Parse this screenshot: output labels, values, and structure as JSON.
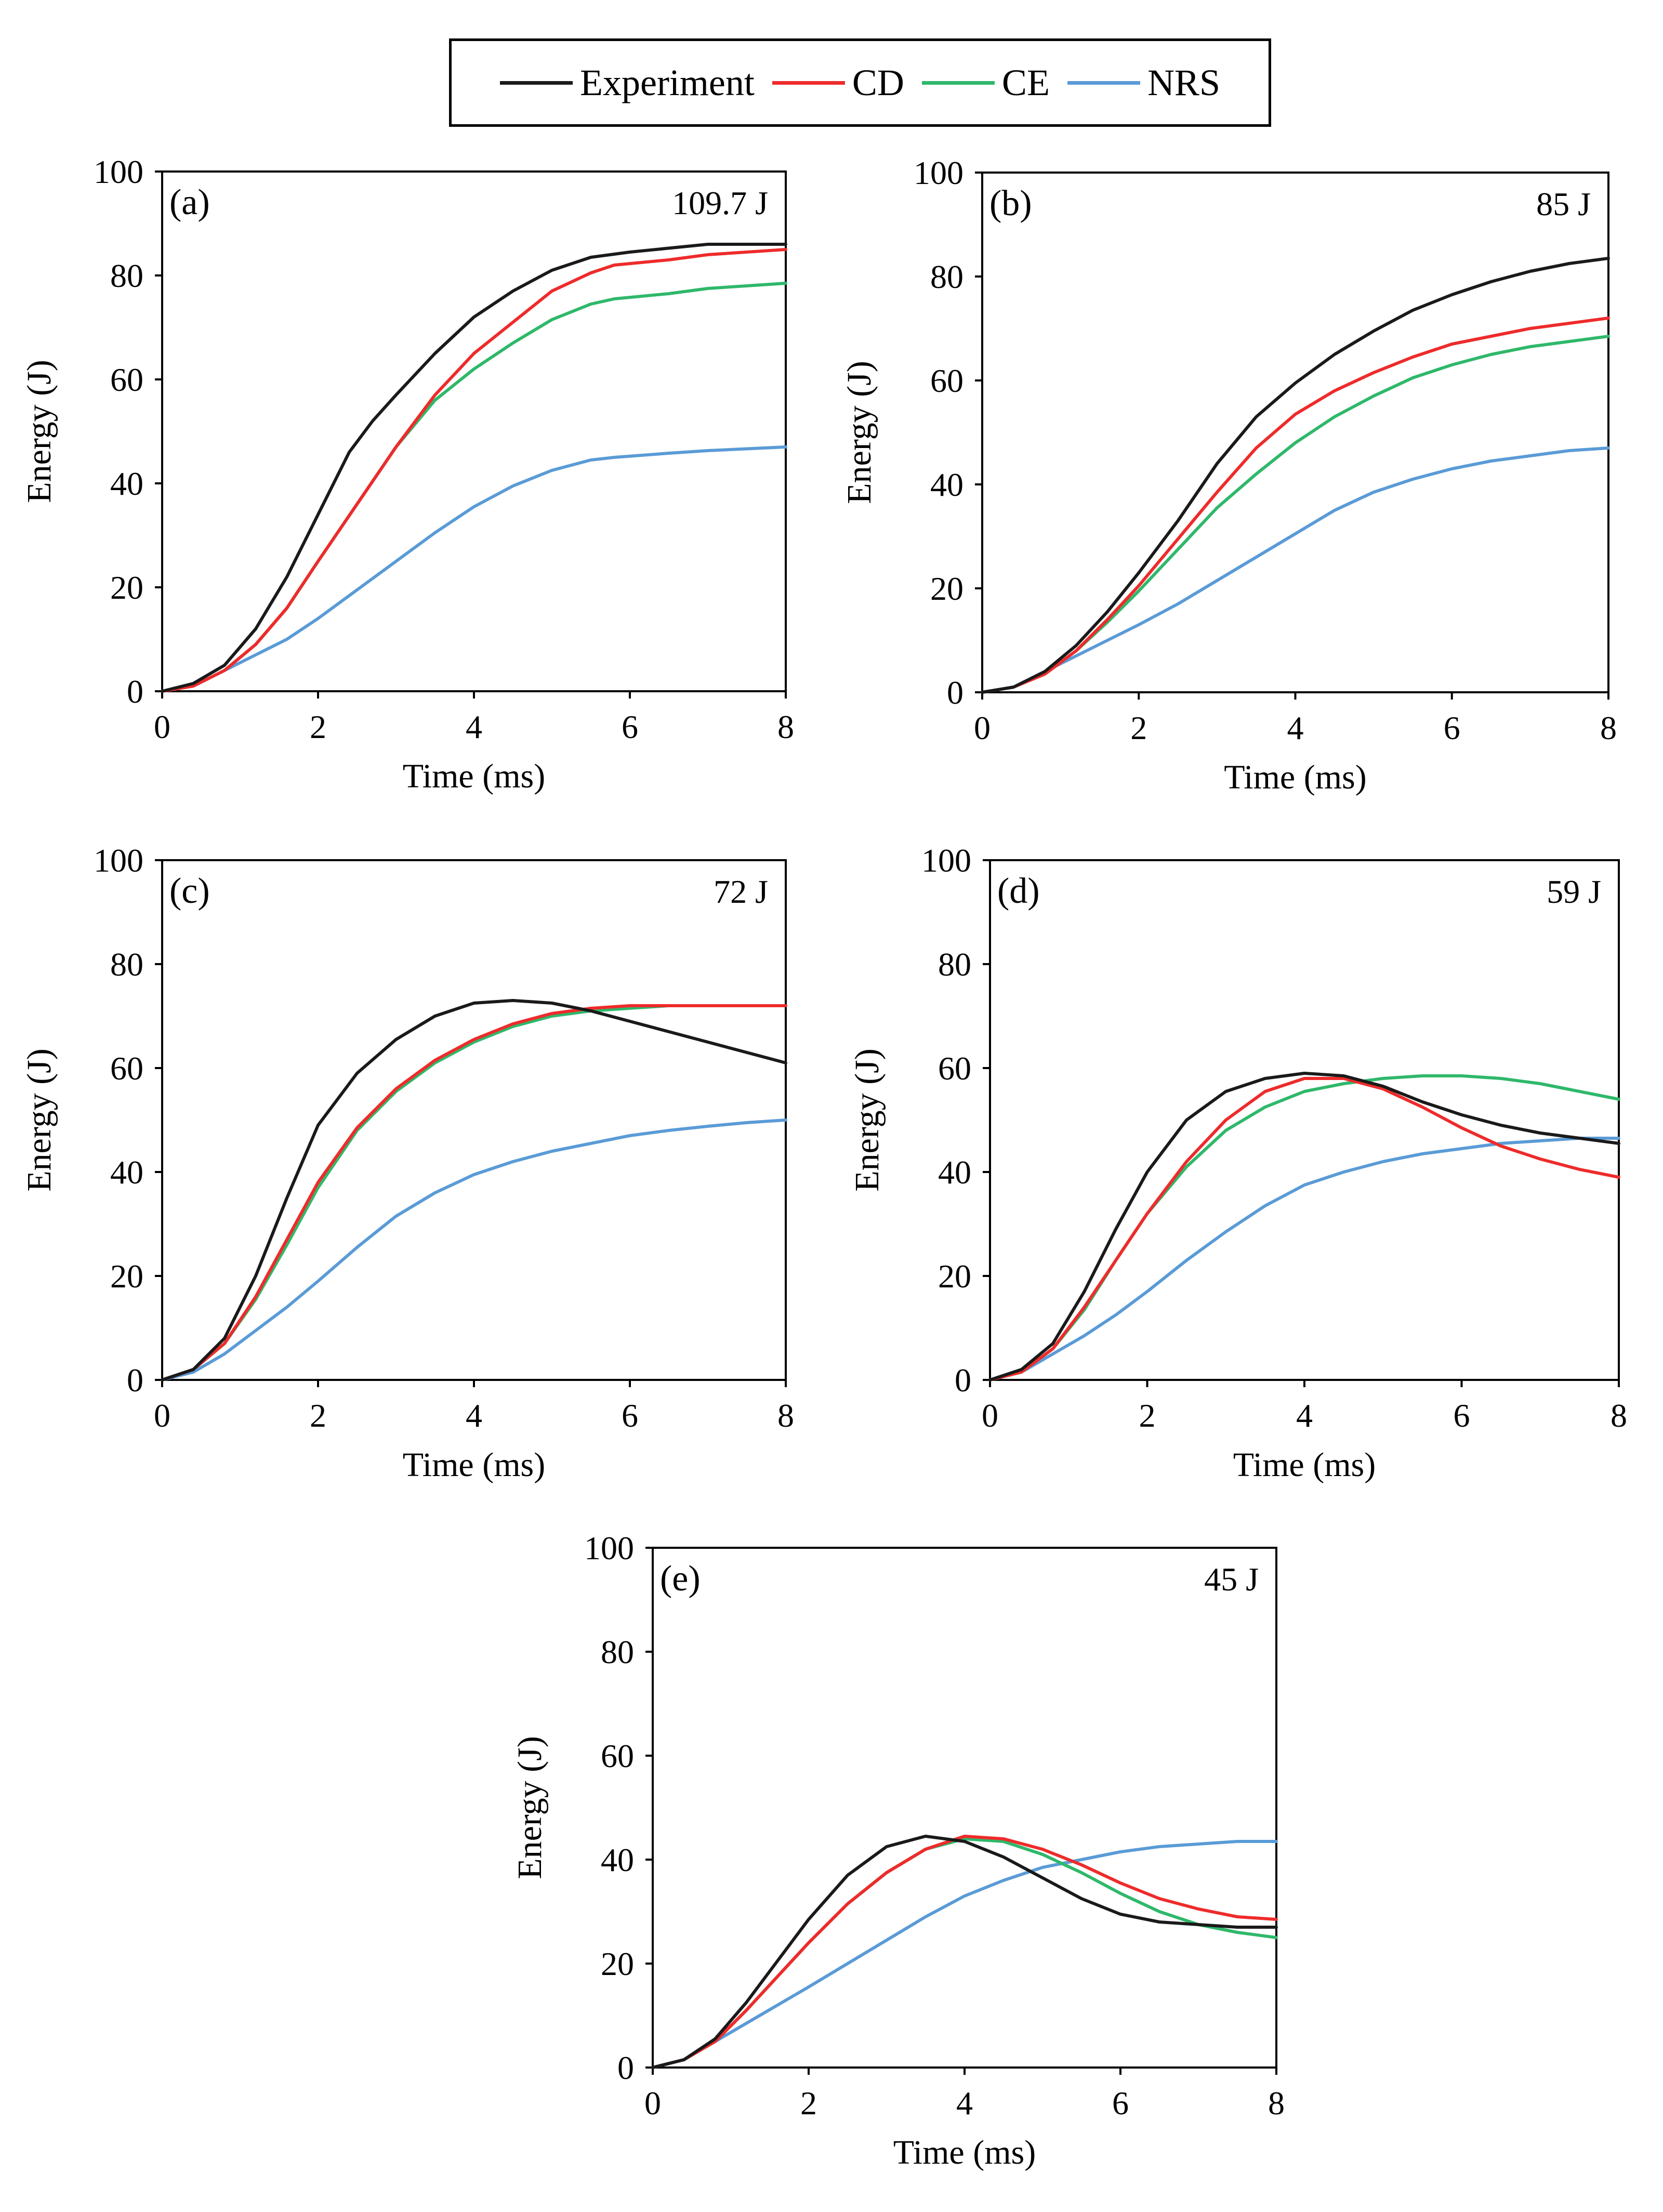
{
  "legend": [
    {
      "name": "Experiment",
      "color": "#1a1a1a"
    },
    {
      "name": "CD",
      "color": "#ee2b2b"
    },
    {
      "name": "CE",
      "color": "#2fb86a"
    },
    {
      "name": "NRS",
      "color": "#5a9bd6"
    }
  ],
  "chart_data": [
    {
      "type": "line",
      "panel": "(a)",
      "annotation": "109.7 J",
      "xlabel": "Time (ms)",
      "ylabel": "Energy (J)",
      "xlim": [
        0,
        8
      ],
      "ylim": [
        0,
        100
      ],
      "xticks": [
        "0",
        "2",
        "4",
        "6",
        "8"
      ],
      "yticks": [
        "0",
        "20",
        "40",
        "60",
        "80",
        "100"
      ],
      "series": [
        {
          "name": "Experiment",
          "x": [
            0,
            0.4,
            0.8,
            1.2,
            1.6,
            2.0,
            2.4,
            2.7,
            3.0,
            3.5,
            4.0,
            4.5,
            5.0,
            5.5,
            6.0,
            7.0,
            8.0
          ],
          "y": [
            0,
            1.5,
            5,
            12,
            22,
            34,
            46,
            52,
            57,
            65,
            72,
            77,
            81,
            83.5,
            84.5,
            86,
            86
          ]
        },
        {
          "name": "CD",
          "x": [
            0,
            0.4,
            0.8,
            1.2,
            1.6,
            2.0,
            2.5,
            3.0,
            3.5,
            4.0,
            4.5,
            5.0,
            5.5,
            5.8,
            6.5,
            7.0,
            8.0
          ],
          "y": [
            0,
            1,
            4,
            9,
            16,
            25,
            36,
            47,
            57,
            65,
            71,
            77,
            80.5,
            82,
            83,
            84,
            85
          ]
        },
        {
          "name": "CE",
          "x": [
            0,
            0.4,
            0.8,
            1.2,
            1.6,
            2.0,
            2.5,
            3.0,
            3.5,
            4.0,
            4.5,
            5.0,
            5.5,
            5.8,
            6.5,
            7.0,
            8.0
          ],
          "y": [
            0,
            1,
            4,
            9,
            16,
            25,
            36,
            47,
            56,
            62,
            67,
            71.5,
            74.5,
            75.5,
            76.5,
            77.5,
            78.5
          ]
        },
        {
          "name": "NRS",
          "x": [
            0,
            0.4,
            0.8,
            1.2,
            1.6,
            2.0,
            2.5,
            3.0,
            3.5,
            4.0,
            4.5,
            5.0,
            5.5,
            5.8,
            6.5,
            7.0,
            8.0
          ],
          "y": [
            0,
            1,
            4,
            7,
            10,
            14,
            19.5,
            25,
            30.5,
            35.5,
            39.5,
            42.5,
            44.5,
            45,
            45.8,
            46.3,
            47
          ]
        }
      ]
    },
    {
      "type": "line",
      "panel": "(b)",
      "annotation": "85 J",
      "xlabel": "Time (ms)",
      "ylabel": "Energy (J)",
      "xlim": [
        0,
        8
      ],
      "ylim": [
        0,
        100
      ],
      "xticks": [
        "0",
        "2",
        "4",
        "6",
        "8"
      ],
      "yticks": [
        "0",
        "20",
        "40",
        "60",
        "80",
        "100"
      ],
      "series": [
        {
          "name": "Experiment",
          "x": [
            0,
            0.4,
            0.8,
            1.2,
            1.6,
            2.0,
            2.5,
            3.0,
            3.5,
            4.0,
            4.5,
            5.0,
            5.5,
            6.0,
            6.5,
            7.0,
            7.5,
            8.0
          ],
          "y": [
            0,
            1,
            4,
            9,
            15.5,
            23,
            33,
            44,
            53,
            59.5,
            65,
            69.5,
            73.5,
            76.5,
            79,
            81,
            82.5,
            83.5
          ]
        },
        {
          "name": "CD",
          "x": [
            0,
            0.4,
            0.8,
            1.2,
            1.6,
            2.0,
            2.5,
            3.0,
            3.5,
            4.0,
            4.5,
            5.0,
            5.5,
            6.0,
            6.5,
            7.0,
            7.5,
            8.0
          ],
          "y": [
            0,
            1,
            3.5,
            8,
            14,
            20.5,
            29.5,
            38.5,
            47,
            53.5,
            58,
            61.5,
            64.5,
            67,
            68.5,
            70,
            71,
            72
          ]
        },
        {
          "name": "CE",
          "x": [
            0,
            0.4,
            0.8,
            1.2,
            1.6,
            2.0,
            2.5,
            3.0,
            3.5,
            4.0,
            4.5,
            5.0,
            5.5,
            6.0,
            6.5,
            7.0,
            7.5,
            8.0
          ],
          "y": [
            0,
            1,
            3.5,
            8,
            13.5,
            19.5,
            27.5,
            35.5,
            42,
            48,
            53,
            57,
            60.5,
            63,
            65,
            66.5,
            67.5,
            68.5
          ]
        },
        {
          "name": "NRS",
          "x": [
            0,
            0.4,
            0.8,
            1.2,
            1.6,
            2.0,
            2.5,
            3.0,
            3.5,
            4.0,
            4.5,
            5.0,
            5.5,
            6.0,
            6.5,
            7.0,
            7.5,
            8.0
          ],
          "y": [
            0,
            1,
            4,
            7,
            10,
            13,
            17,
            21.5,
            26,
            30.5,
            35,
            38.5,
            41,
            43,
            44.5,
            45.5,
            46.5,
            47
          ]
        }
      ]
    },
    {
      "type": "line",
      "panel": "(c)",
      "annotation": "72 J",
      "xlabel": "Time (ms)",
      "ylabel": "Energy (J)",
      "xlim": [
        0,
        8
      ],
      "ylim": [
        0,
        100
      ],
      "xticks": [
        "0",
        "2",
        "4",
        "6",
        "8"
      ],
      "yticks": [
        "0",
        "20",
        "40",
        "60",
        "80",
        "100"
      ],
      "series": [
        {
          "name": "Experiment",
          "x": [
            0,
            0.4,
            0.8,
            1.2,
            1.6,
            2.0,
            2.5,
            3.0,
            3.5,
            4.0,
            4.5,
            5.0,
            5.5,
            6.0,
            6.5,
            7.0,
            7.5,
            8.0
          ],
          "y": [
            0,
            2,
            8,
            20,
            35,
            49,
            59,
            65.5,
            70,
            72.5,
            73,
            72.5,
            71,
            69,
            67,
            65,
            63,
            61
          ]
        },
        {
          "name": "CD",
          "x": [
            0,
            0.4,
            0.8,
            1.2,
            1.6,
            2.0,
            2.5,
            3.0,
            3.5,
            4.0,
            4.5,
            5.0,
            5.5,
            6.0,
            6.5,
            7.0,
            7.5,
            8.0
          ],
          "y": [
            0,
            2,
            7,
            16,
            27,
            38,
            48.5,
            56,
            61.5,
            65.5,
            68.5,
            70.5,
            71.5,
            72,
            72,
            72,
            72,
            72
          ]
        },
        {
          "name": "CE",
          "x": [
            0,
            0.4,
            0.8,
            1.2,
            1.6,
            2.0,
            2.5,
            3.0,
            3.5,
            4.0,
            4.5,
            5.0,
            5.5,
            6.0,
            6.5,
            7.0,
            7.5,
            8.0
          ],
          "y": [
            0,
            2,
            7,
            15.5,
            26,
            37,
            48,
            55.5,
            61,
            65,
            68,
            70,
            71,
            71.5,
            72,
            72,
            72,
            72
          ]
        },
        {
          "name": "NRS",
          "x": [
            0,
            0.4,
            0.8,
            1.2,
            1.6,
            2.0,
            2.5,
            3.0,
            3.5,
            4.0,
            4.5,
            5.0,
            5.5,
            6.0,
            6.5,
            7.0,
            7.5,
            8.0
          ],
          "y": [
            0,
            1.5,
            5,
            9.5,
            14,
            19,
            25.5,
            31.5,
            36,
            39.5,
            42,
            44,
            45.5,
            47,
            48,
            48.8,
            49.5,
            50
          ]
        }
      ]
    },
    {
      "type": "line",
      "panel": "(d)",
      "annotation": "59 J",
      "xlabel": "Time (ms)",
      "ylabel": "Energy (J)",
      "xlim": [
        0,
        8
      ],
      "ylim": [
        0,
        100
      ],
      "xticks": [
        "0",
        "2",
        "4",
        "6",
        "8"
      ],
      "yticks": [
        "0",
        "20",
        "40",
        "60",
        "80",
        "100"
      ],
      "series": [
        {
          "name": "Experiment",
          "x": [
            0,
            0.4,
            0.8,
            1.2,
            1.6,
            2.0,
            2.5,
            3.0,
            3.5,
            4.0,
            4.5,
            5.0,
            5.5,
            6.0,
            6.5,
            7.0,
            7.5,
            8.0
          ],
          "y": [
            0,
            2,
            7,
            17,
            29,
            40,
            50,
            55.5,
            58,
            59,
            58.5,
            56.5,
            53.5,
            51,
            49,
            47.5,
            46.5,
            45.5
          ]
        },
        {
          "name": "CD",
          "x": [
            0,
            0.4,
            0.8,
            1.2,
            1.6,
            2.0,
            2.5,
            3.0,
            3.5,
            4.0,
            4.5,
            5.0,
            5.5,
            6.0,
            6.5,
            7.0,
            7.5,
            8.0
          ],
          "y": [
            0,
            1.5,
            6,
            14,
            23,
            32,
            42,
            50,
            55.5,
            58,
            58,
            56,
            52.5,
            48.5,
            45,
            42.5,
            40.5,
            39
          ]
        },
        {
          "name": "CE",
          "x": [
            0,
            0.4,
            0.8,
            1.2,
            1.6,
            2.0,
            2.5,
            3.0,
            3.5,
            4.0,
            4.5,
            5.0,
            5.5,
            6.0,
            6.5,
            7.0,
            7.5,
            8.0
          ],
          "y": [
            0,
            1.5,
            6,
            13.5,
            23,
            32,
            41,
            48,
            52.5,
            55.5,
            57,
            58,
            58.5,
            58.5,
            58,
            57,
            55.5,
            54
          ]
        },
        {
          "name": "NRS",
          "x": [
            0,
            0.4,
            0.8,
            1.2,
            1.6,
            2.0,
            2.5,
            3.0,
            3.5,
            4.0,
            4.5,
            5.0,
            5.5,
            6.0,
            6.5,
            7.0,
            7.5,
            8.0
          ],
          "y": [
            0,
            1.5,
            5,
            8.5,
            12.5,
            17,
            23,
            28.5,
            33.5,
            37.5,
            40,
            42,
            43.5,
            44.5,
            45.5,
            46,
            46.5,
            46.5
          ]
        }
      ]
    },
    {
      "type": "line",
      "panel": "(e)",
      "annotation": "45 J",
      "xlabel": "Time (ms)",
      "ylabel": "Energy (J)",
      "xlim": [
        0,
        8
      ],
      "ylim": [
        0,
        100
      ],
      "xticks": [
        "0",
        "2",
        "4",
        "6",
        "8"
      ],
      "yticks": [
        "0",
        "20",
        "40",
        "60",
        "80",
        "100"
      ],
      "series": [
        {
          "name": "Experiment",
          "x": [
            0,
            0.4,
            0.8,
            1.2,
            1.6,
            2.0,
            2.5,
            3.0,
            3.5,
            4.0,
            4.5,
            5.0,
            5.5,
            6.0,
            6.5,
            7.0,
            7.5,
            8.0
          ],
          "y": [
            0,
            1.5,
            5.5,
            12.5,
            20.5,
            28.5,
            37,
            42.5,
            44.5,
            43.5,
            40.5,
            36.5,
            32.5,
            29.5,
            28,
            27.5,
            27,
            27
          ]
        },
        {
          "name": "CD",
          "x": [
            0,
            0.4,
            0.8,
            1.2,
            1.6,
            2.0,
            2.5,
            3.0,
            3.5,
            4.0,
            4.5,
            5.0,
            5.5,
            6.0,
            6.5,
            7.0,
            7.5,
            8.0
          ],
          "y": [
            0,
            1.5,
            5,
            11,
            17.5,
            24,
            31.5,
            37.5,
            42,
            44.5,
            44,
            42,
            39,
            35.5,
            32.5,
            30.5,
            29,
            28.5
          ]
        },
        {
          "name": "CE",
          "x": [
            0,
            0.4,
            0.8,
            1.2,
            1.6,
            2.0,
            2.5,
            3.0,
            3.5,
            4.0,
            4.5,
            5.0,
            5.5,
            6.0,
            6.5,
            7.0,
            7.5,
            8.0
          ],
          "y": [
            0,
            1.5,
            5,
            11,
            17.5,
            24,
            31.5,
            37.5,
            42,
            44,
            43.5,
            41,
            37.5,
            33.5,
            30,
            27.5,
            26,
            25
          ]
        },
        {
          "name": "NRS",
          "x": [
            0,
            0.4,
            0.8,
            1.2,
            1.6,
            2.0,
            2.5,
            3.0,
            3.5,
            4.0,
            4.5,
            5.0,
            5.5,
            6.0,
            6.5,
            7.0,
            7.5,
            8.0
          ],
          "y": [
            0,
            1.5,
            5,
            8.5,
            12,
            15.5,
            20,
            24.5,
            29,
            33,
            36,
            38.5,
            40,
            41.5,
            42.5,
            43,
            43.5,
            43.5
          ]
        }
      ]
    }
  ]
}
